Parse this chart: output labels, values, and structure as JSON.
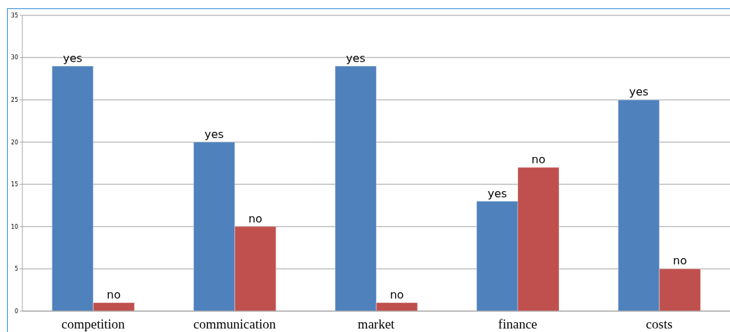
{
  "chart_data": {
    "type": "bar",
    "categories": [
      "competition",
      "communication",
      "market",
      "finance",
      "costs"
    ],
    "series": [
      {
        "name": "yes",
        "color": "#4f81bd",
        "values": [
          29,
          20,
          29,
          13,
          25
        ]
      },
      {
        "name": "no",
        "color": "#c0504d",
        "values": [
          1,
          10,
          1,
          17,
          5
        ]
      }
    ],
    "ylim": [
      0,
      35
    ],
    "yticks": [
      0,
      5,
      10,
      15,
      20,
      25,
      30,
      35
    ],
    "grid": "y"
  }
}
